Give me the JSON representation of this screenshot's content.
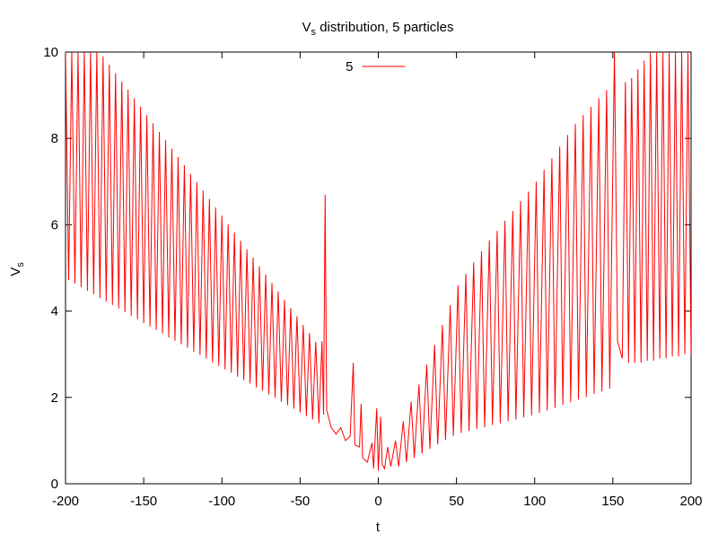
{
  "chart_data": {
    "type": "line",
    "title": {
      "text": "V",
      "subscript": "s",
      "rest": " distribution, 5 particles"
    },
    "xlabel": "t",
    "ylabel": {
      "text": "V",
      "subscript": "s"
    },
    "xlim": [
      -200,
      200
    ],
    "xticks": [
      -200,
      -150,
      -100,
      -50,
      0,
      50,
      100,
      150,
      200
    ],
    "ylim": [
      0,
      10
    ],
    "yticks": [
      0,
      2,
      4,
      6,
      8,
      10
    ],
    "legend": "top",
    "series": [
      {
        "name": "5",
        "color": "#ff0000",
        "x": [
          -200,
          -198,
          -196,
          -194,
          -192,
          -190,
          -188,
          -186,
          -184,
          -182,
          -180,
          -178,
          -176,
          -174,
          -172,
          -170,
          -168,
          -166,
          -164,
          -162,
          -160,
          -158,
          -156,
          -154,
          -152,
          -150,
          -148,
          -146,
          -144,
          -142,
          -140,
          -138,
          -136,
          -134,
          -132,
          -130,
          -128,
          -126,
          -124,
          -122,
          -120,
          -118,
          -116,
          -114,
          -112,
          -110,
          -108,
          -106,
          -104,
          -102,
          -100,
          -98,
          -96,
          -94,
          -92,
          -90,
          -88,
          -86,
          -84,
          -82,
          -80,
          -78,
          -76,
          -74,
          -72,
          -70,
          -68,
          -66,
          -64,
          -62,
          -60,
          -58,
          -56,
          -54,
          -52,
          -50,
          -48,
          -46,
          -44,
          -42,
          -40,
          -38,
          -36,
          -35,
          -34,
          -33,
          -30,
          -27,
          -24,
          -21,
          -18,
          -16,
          -15,
          -12,
          -11,
          -10,
          -7,
          -4,
          -3,
          -1,
          0,
          1.5,
          2.5,
          4,
          6,
          8,
          11,
          13,
          16,
          18,
          21,
          23,
          26,
          28,
          31,
          33,
          36,
          38,
          41,
          43,
          46,
          48,
          51,
          53,
          56,
          58,
          61,
          63,
          66,
          68,
          71,
          73,
          76,
          78,
          81,
          83,
          86,
          88,
          91,
          93,
          96,
          98,
          101,
          103,
          106,
          108,
          111,
          113,
          116,
          118,
          121,
          123,
          126,
          128,
          131,
          133,
          136,
          138,
          141,
          143,
          146,
          148,
          151,
          153,
          156,
          158,
          160,
          162,
          164,
          166,
          168,
          170,
          172,
          174,
          176,
          178,
          180,
          182,
          184,
          186,
          188,
          190,
          192,
          194,
          196,
          198,
          200
        ],
        "values": [
          10,
          4.72,
          10,
          4.64,
          10,
          4.55,
          10,
          4.47,
          10,
          4.39,
          10,
          4.3,
          9.9,
          4.22,
          9.71,
          4.14,
          9.51,
          4.06,
          9.32,
          3.97,
          9.13,
          3.89,
          8.93,
          3.81,
          8.74,
          3.72,
          8.54,
          3.64,
          8.35,
          3.56,
          8.15,
          3.48,
          7.96,
          3.39,
          7.76,
          3.31,
          7.57,
          3.23,
          7.38,
          3.15,
          7.18,
          3.06,
          6.99,
          2.98,
          6.79,
          2.9,
          6.6,
          2.81,
          6.4,
          2.73,
          6.21,
          2.65,
          6.01,
          2.57,
          5.82,
          2.48,
          5.63,
          2.4,
          5.43,
          2.32,
          5.24,
          2.23,
          5.04,
          2.15,
          4.85,
          2.07,
          4.65,
          1.99,
          4.46,
          1.9,
          4.26,
          1.82,
          4.07,
          1.74,
          3.88,
          1.65,
          3.68,
          1.57,
          3.49,
          1.49,
          3.29,
          1.4,
          3.3,
          1.6,
          6.7,
          1.7,
          1.3,
          1.15,
          1.3,
          1.0,
          1.1,
          2.8,
          0.9,
          0.85,
          1.85,
          0.6,
          0.5,
          0.95,
          0.35,
          1.75,
          0.3,
          1.55,
          0.45,
          0.35,
          0.85,
          0.4,
          1.0,
          0.4,
          1.45,
          0.5,
          1.9,
          0.6,
          2.3,
          0.7,
          2.76,
          0.81,
          3.22,
          0.91,
          3.68,
          1.01,
          4.14,
          1.11,
          4.6,
          1.18,
          4.86,
          1.22,
          5.13,
          1.27,
          5.39,
          1.31,
          5.64,
          1.36,
          5.86,
          1.4,
          6.09,
          1.45,
          6.32,
          1.49,
          6.55,
          1.54,
          6.77,
          1.58,
          7.0,
          1.64,
          7.27,
          1.7,
          7.54,
          1.76,
          7.81,
          1.83,
          8.08,
          1.89,
          8.34,
          1.95,
          8.54,
          2.01,
          8.73,
          2.08,
          8.93,
          2.14,
          9.12,
          2.2,
          10,
          3.3,
          2.9,
          9.3,
          2.8,
          9.4,
          2.8,
          9.6,
          2.8,
          9.8,
          2.85,
          10,
          2.85,
          10,
          2.9,
          10,
          2.9,
          10,
          2.95,
          10,
          2.95,
          10,
          3.0,
          10,
          3.0
        ]
      }
    ]
  }
}
